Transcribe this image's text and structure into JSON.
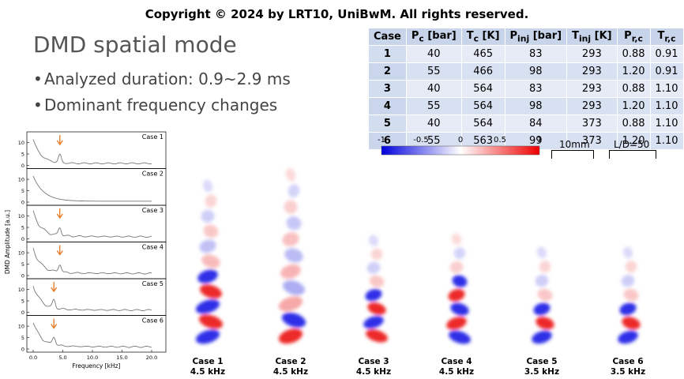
{
  "copyright": "Copyright © 2024 by LRT10, UniBwM. All rights reserved.",
  "title": "DMD spatial mode",
  "bullets": [
    "Analyzed duration: 0.9~2.9 ms",
    "Dominant frequency changes"
  ],
  "table": {
    "headers": [
      "Case",
      "P_c [bar]",
      "T_c [K]",
      "P_inj [bar]",
      "T_inj [K]",
      "P_r,c",
      "T_r,c"
    ],
    "rows": [
      [
        "1",
        "40",
        "465",
        "83",
        "293",
        "0.88",
        "0.91"
      ],
      [
        "2",
        "55",
        "466",
        "98",
        "293",
        "1.20",
        "0.91"
      ],
      [
        "3",
        "40",
        "564",
        "83",
        "293",
        "0.88",
        "1.10"
      ],
      [
        "4",
        "55",
        "564",
        "98",
        "293",
        "1.20",
        "1.10"
      ],
      [
        "5",
        "40",
        "564",
        "84",
        "373",
        "0.88",
        "1.10"
      ],
      [
        "6",
        "55",
        "563",
        "99",
        "373",
        "1.20",
        "1.10"
      ]
    ]
  },
  "colorbar": {
    "ticks": [
      "-1",
      "-0.5",
      "0",
      "0.5",
      "1"
    ],
    "colors": [
      "#0000dd",
      "#ffffff",
      "#ee0000"
    ]
  },
  "scalebars": [
    "10mm",
    "L/D=50"
  ],
  "spectra": {
    "ylabel": "DMD Amplitude [a.u.]",
    "xlabel": "Frequency [kHz]",
    "xticks": [
      "0.0",
      "5.0",
      "10.0",
      "15.0",
      "20.0"
    ],
    "yticks": [
      "0",
      "5",
      "10"
    ],
    "arrow_color": "#e87722",
    "panels": [
      {
        "label": "Case 1",
        "peak_khz": 4.5,
        "arrow": true
      },
      {
        "label": "Case 2",
        "peak_khz": null,
        "arrow": false
      },
      {
        "label": "Case 3",
        "peak_khz": 4.5,
        "arrow": true
      },
      {
        "label": "Case 4",
        "peak_khz": 4.5,
        "arrow": true
      },
      {
        "label": "Case 5",
        "peak_khz": 3.5,
        "arrow": true
      },
      {
        "label": "Case 6",
        "peak_khz": 3.5,
        "arrow": true
      }
    ]
  },
  "modes": [
    {
      "case": "Case 1",
      "freq": "4.5 kHz"
    },
    {
      "case": "Case 2",
      "freq": "4.5 kHz"
    },
    {
      "case": "Case 3",
      "freq": "4.5 kHz"
    },
    {
      "case": "Case 4",
      "freq": "4.5 kHz"
    },
    {
      "case": "Case 5",
      "freq": "3.5 kHz"
    },
    {
      "case": "Case 6",
      "freq": "3.5 kHz"
    }
  ]
}
